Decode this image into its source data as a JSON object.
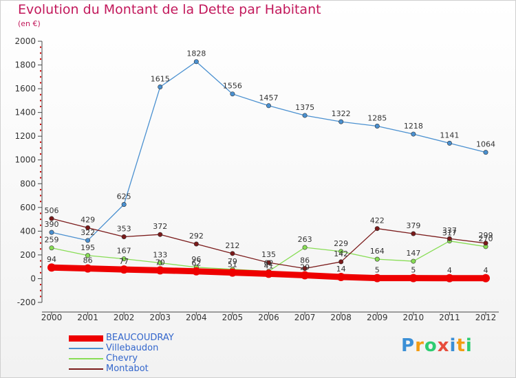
{
  "chart_data": {
    "type": "line",
    "title": "Evolution du Montant de la Dette par Habitant",
    "subtitle": "(en €)",
    "xlabel": "",
    "ylabel": "",
    "x": [
      "2000",
      "2001",
      "2002",
      "2003",
      "2004",
      "2005",
      "2006",
      "2007",
      "2008",
      "2009",
      "2010",
      "2011",
      "2012"
    ],
    "ylim": [
      -200,
      2000
    ],
    "yticks": [
      "-200",
      "0",
      "200",
      "400",
      "600",
      "800",
      "1000",
      "1200",
      "1400",
      "1600",
      "1800",
      "2000"
    ],
    "grid": false,
    "legend_position": "bottom-left",
    "series": [
      {
        "name": "BEAUCOUDRAY",
        "color": "#ee0000",
        "values": [
          94,
          86,
          77,
          70,
          62,
          51,
          41,
          29,
          14,
          5,
          5,
          4,
          4
        ],
        "labels": [
          "94",
          "86",
          "77",
          "70",
          "62",
          "51",
          "41",
          "29",
          "14",
          "5",
          "5",
          "4",
          "4"
        ]
      },
      {
        "name": "Villebaudon",
        "color": "#4a90d0",
        "values": [
          390,
          322,
          625,
          1615,
          1828,
          1556,
          1457,
          1375,
          1322,
          1285,
          1218,
          1141,
          1064
        ],
        "labels": [
          "390",
          "322",
          "625",
          "1615",
          "1828",
          "1556",
          "1457",
          "1375",
          "1322",
          "1285",
          "1218",
          "1141",
          "1064"
        ]
      },
      {
        "name": "Chevry",
        "color": "#88dd55",
        "values": [
          259,
          195,
          167,
          133,
          96,
          79,
          62,
          263,
          229,
          164,
          147,
          317,
          270
        ],
        "labels": [
          "259",
          "195",
          "167",
          "133",
          "96",
          "79",
          "62",
          "263",
          "229",
          "164",
          "147",
          "317",
          "270"
        ]
      },
      {
        "name": "Montabot",
        "color": "#7a1a1a",
        "values": [
          506,
          429,
          353,
          372,
          292,
          212,
          135,
          86,
          142,
          422,
          379,
          337,
          299
        ],
        "labels": [
          "506",
          "429",
          "353",
          "372",
          "292",
          "212",
          "135",
          "86",
          "142",
          "422",
          "379",
          "337",
          "299"
        ]
      }
    ]
  },
  "logo": {
    "letters": [
      {
        "ch": "P",
        "color": "#3b8fd6"
      },
      {
        "ch": "r",
        "color": "#f39c12"
      },
      {
        "ch": "o",
        "color": "#2ecc71"
      },
      {
        "ch": "x",
        "color": "#e74c3c"
      },
      {
        "ch": "i",
        "color": "#3b8fd6"
      },
      {
        "ch": "t",
        "color": "#f39c12"
      },
      {
        "ch": "i",
        "color": "#2ecc71"
      }
    ]
  }
}
